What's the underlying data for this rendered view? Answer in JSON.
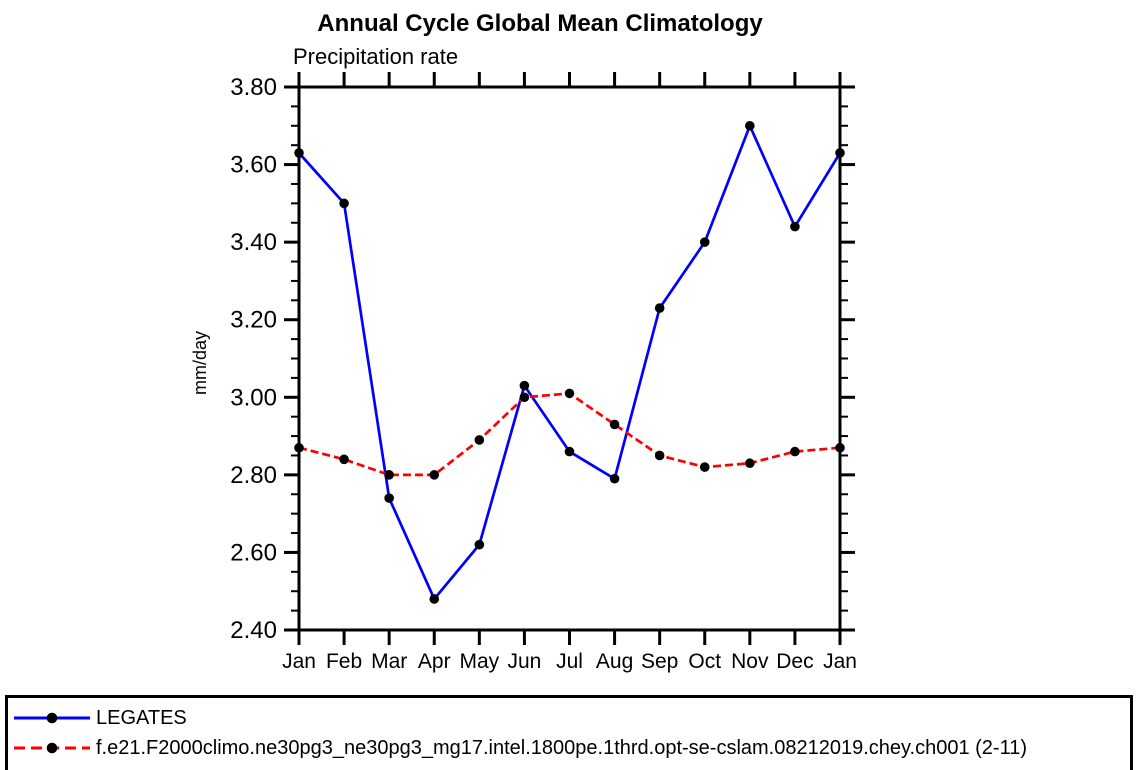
{
  "chart_data": {
    "type": "line",
    "title": "Annual Cycle Global Mean Climatology",
    "subtitle": "Precipitation rate",
    "xlabel": "",
    "ylabel": "mm/day",
    "categories": [
      "Jan",
      "Feb",
      "Mar",
      "Apr",
      "May",
      "Jun",
      "Jul",
      "Aug",
      "Sep",
      "Oct",
      "Nov",
      "Dec",
      "Jan"
    ],
    "ylim": [
      2.4,
      3.8
    ],
    "y_major_step": 0.2,
    "y_minor_step": 0.05,
    "grid": false,
    "legend_position": "bottom-box",
    "axis_color": "#000000",
    "marker_color": "#000000",
    "series": [
      {
        "name": "LEGATES",
        "color": "#0000ff",
        "style": "solid",
        "marker": "filled-circle",
        "values": [
          3.63,
          3.5,
          2.74,
          2.48,
          2.62,
          3.03,
          2.86,
          2.79,
          3.23,
          3.4,
          3.7,
          3.44,
          3.63
        ]
      },
      {
        "name": "f.e21.F2000climo.ne30pg3_ne30pg3_mg17.intel.1800pe.1thrd.opt-se-cslam.08212019.chey.ch001 (2-11)",
        "color": "#ff0000",
        "style": "dashed",
        "marker": "filled-circle",
        "values": [
          2.87,
          2.84,
          2.8,
          2.8,
          2.89,
          3.0,
          3.01,
          2.93,
          2.85,
          2.82,
          2.83,
          2.86,
          2.87
        ]
      }
    ]
  }
}
